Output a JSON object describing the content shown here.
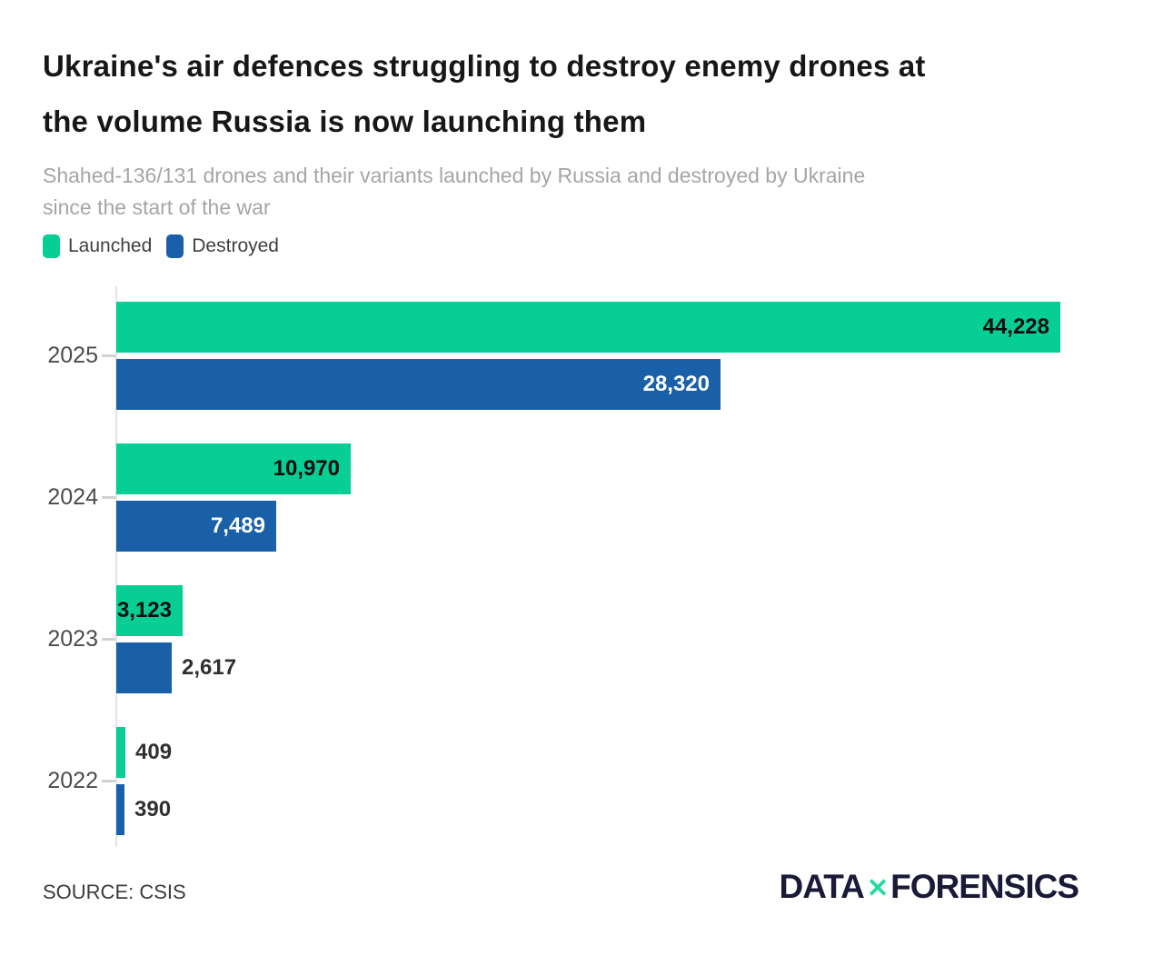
{
  "page": {
    "background": "#ffffff"
  },
  "header": {
    "title_lines": [
      "Ukraine's air defences struggling to destroy enemy drones at",
      "the volume Russia is now launching them"
    ],
    "subtitle_lines": [
      "Shahed-136/131 drones and their variants launched by Russia and destroyed by Ukraine",
      "since the start of the war"
    ]
  },
  "legend": {
    "items": [
      {
        "label": "Launched",
        "color": "#06CE95"
      },
      {
        "label": "Destroyed",
        "color": "#1A60A8"
      }
    ]
  },
  "chart_data": {
    "type": "bar",
    "orientation": "horizontal",
    "title": "Ukraine's air defences struggling to destroy enemy drones at the volume Russia is now launching them",
    "subtitle": "Shahed-136/131 drones and their variants launched by Russia and destroyed by Ukraine since the start of the war",
    "categories": [
      "2025",
      "2024",
      "2023",
      "2022"
    ],
    "series": [
      {
        "name": "Launched",
        "color": "#06CE95",
        "values": [
          44228,
          10970,
          3123,
          409
        ],
        "value_labels": [
          "44,228",
          "10,970",
          "3,123",
          "409"
        ],
        "label_inside": [
          true,
          true,
          true,
          false
        ]
      },
      {
        "name": "Destroyed",
        "color": "#1A60A8",
        "values": [
          28320,
          7489,
          2617,
          390
        ],
        "value_labels": [
          "28,320",
          "7,489",
          "2,617",
          "390"
        ],
        "label_inside": [
          true,
          true,
          false,
          false
        ]
      }
    ],
    "xlim": [
      0,
      44228
    ],
    "legend_position": "top-left",
    "grid": false,
    "label_colors": {
      "inside_launched": "#0e0e0e",
      "inside_destroyed": "#ffffff",
      "outside": "#303030"
    },
    "axis_color": "#e4e4e4",
    "tick_color": "#d2d2d2"
  },
  "footer": {
    "source": "SOURCE: CSIS",
    "logo": {
      "part1": "DATA",
      "x": "✕",
      "part2": "FORENSICS",
      "text_color": "#1a1a38",
      "accent": "#2bd9a0"
    }
  }
}
